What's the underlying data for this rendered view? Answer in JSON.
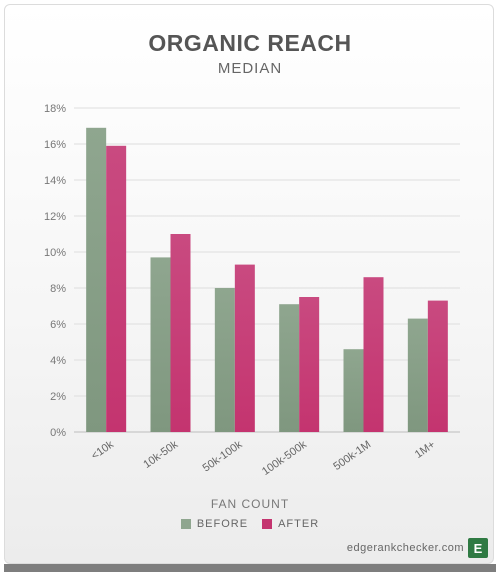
{
  "chart_data": {
    "type": "bar",
    "title": "ORGANIC REACH",
    "subtitle": "MEDIAN",
    "xlabel": "FAN COUNT",
    "ylabel": "",
    "ylim": [
      0,
      18
    ],
    "yticks": [
      "0%",
      "2%",
      "4%",
      "6%",
      "8%",
      "10%",
      "12%",
      "14%",
      "16%",
      "18%"
    ],
    "categories": [
      "<10k",
      "10k-50k",
      "50k-100k",
      "100k-500k",
      "500k-1M",
      "1M+"
    ],
    "series": [
      {
        "name": "BEFORE",
        "color": "#8fa68f",
        "values": [
          16.9,
          9.7,
          8.0,
          7.1,
          4.6,
          6.3
        ]
      },
      {
        "name": "AFTER",
        "color": "#c4346f",
        "values": [
          15.9,
          11.0,
          9.3,
          7.5,
          8.6,
          7.3
        ]
      }
    ],
    "grid": true,
    "legend": "bottom"
  },
  "footer": {
    "brand": "edgerankchecker.com",
    "logo_letter": "E"
  }
}
